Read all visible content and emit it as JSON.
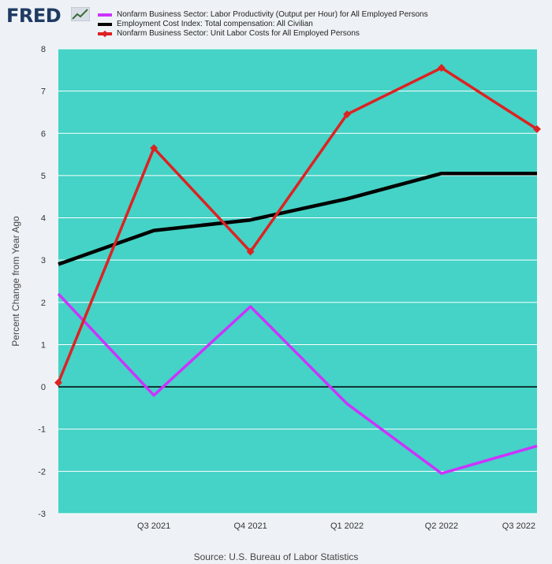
{
  "brand": {
    "name": "FRED"
  },
  "source": "Source: U.S. Bureau of Labor Statistics",
  "colors": {
    "plot_background": "#44d3c6",
    "grid": "#ffffff",
    "zero_line": "#000000",
    "productivity": "#cc33ff",
    "ecl": "#000000",
    "ulc": "#dd2222"
  },
  "chart_data": {
    "type": "line",
    "title": "",
    "xlabel": "",
    "ylabel": "Percent Change from Year Ago",
    "x": [
      "2021-04-01",
      "2021-07-01",
      "2021-10-01",
      "2022-01-01",
      "2022-04-01",
      "2022-07-01"
    ],
    "x_tick_labels": [
      "Q3 2021",
      "Q4 2021",
      "Q1 2022",
      "Q2 2022",
      "Q3 2022"
    ],
    "ylim": [
      -3,
      8
    ],
    "yticks": [
      -3,
      -2,
      -1,
      0,
      1,
      2,
      3,
      4,
      5,
      6,
      7,
      8
    ],
    "grid": true,
    "legend_position": "top",
    "series": [
      {
        "name": "Nonfarm Business Sector: Labor Productivity (Output per Hour) for All Employed Persons",
        "color": "#cc33ff",
        "marker": "none",
        "values": [
          2.2,
          -0.2,
          1.9,
          -0.4,
          -2.05,
          -1.4
        ]
      },
      {
        "name": "Employment Cost Index: Total compensation: All Civilian",
        "color": "#000000",
        "marker": "none",
        "values": [
          2.9,
          3.7,
          3.95,
          4.45,
          5.05,
          5.05
        ]
      },
      {
        "name": "Nonfarm Business Sector: Unit Labor Costs for All Employed Persons",
        "color": "#dd2222",
        "marker": "diamond",
        "values": [
          0.1,
          5.65,
          3.2,
          6.45,
          7.55,
          6.1
        ]
      }
    ]
  }
}
